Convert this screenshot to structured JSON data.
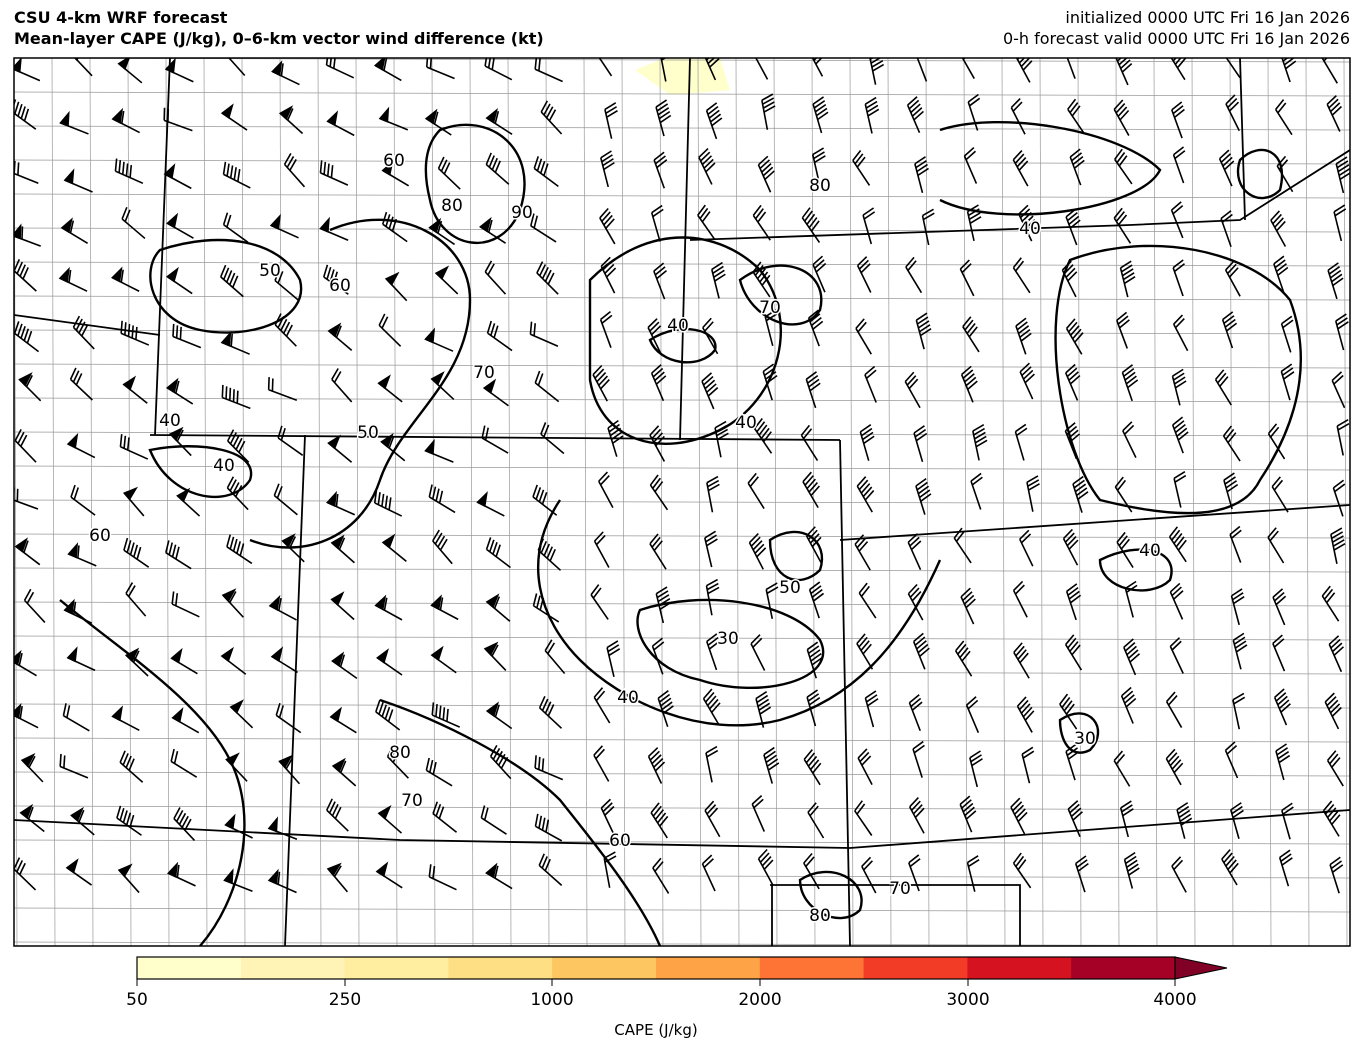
{
  "header": {
    "title_line1": "CSU 4-km WRF forecast",
    "title_line2": "Mean-layer CAPE (J/kg), 0–6-km vector wind difference (kt)",
    "init": "initialized 0000 UTC Fri 16 Jan 2026",
    "valid": "0-h forecast valid 0000 UTC Fri 16 Jan 2026"
  },
  "map": {
    "contour_labels": [
      "60",
      "80",
      "90",
      "50",
      "60",
      "70",
      "80",
      "70",
      "40",
      "40",
      "50",
      "40",
      "60",
      "50",
      "30",
      "40",
      "80",
      "70",
      "60",
      "70",
      "80",
      "40",
      "40",
      "30",
      "40"
    ],
    "cape_shading_present": "minor area near northern edge, lowest category"
  },
  "colorbar": {
    "label": "CAPE (J/kg)",
    "ticks": [
      "50",
      "250",
      "1000",
      "2000",
      "3000",
      "4000"
    ],
    "colors": [
      "#ffffcc",
      "#fff4b6",
      "#ffeda0",
      "#fedf83",
      "#fec661",
      "#fea446",
      "#fd7434",
      "#f33c25",
      "#d5121f",
      "#a50026"
    ],
    "extend_color": "#800026"
  }
}
